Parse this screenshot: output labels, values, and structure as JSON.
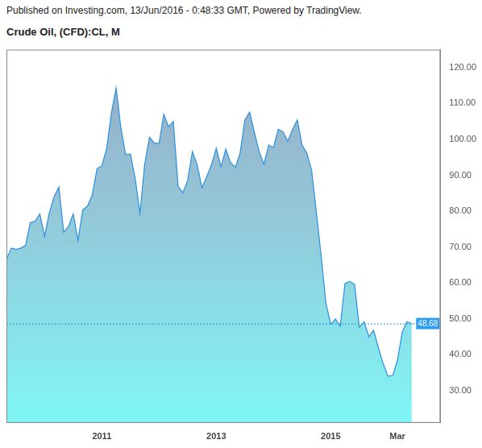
{
  "chart_data": {
    "type": "area",
    "title": "Crude Oil, (CFD):CL, M",
    "subtitle": "Published on Investing.com, 13/Jun/2016 - 0:48:33 GMT, Powered by TradingView.",
    "categories": [
      null,
      null,
      null,
      null,
      null,
      null,
      null,
      null,
      null,
      null,
      null,
      null,
      null,
      null,
      null,
      null,
      null,
      null,
      null,
      null,
      "2011",
      null,
      null,
      null,
      null,
      null,
      null,
      null,
      null,
      null,
      null,
      null,
      null,
      null,
      null,
      null,
      null,
      null,
      null,
      null,
      null,
      null,
      null,
      null,
      "2013",
      null,
      null,
      null,
      null,
      null,
      null,
      null,
      null,
      null,
      null,
      null,
      null,
      null,
      null,
      null,
      null,
      null,
      null,
      null,
      null,
      null,
      null,
      null,
      "2015",
      null,
      null,
      null,
      null,
      null,
      null,
      null,
      null,
      null,
      null,
      null,
      null,
      null,
      "Mar",
      null,
      null,
      null,
      null,
      null,
      null,
      null,
      null,
      null
    ],
    "values": [
      66.4,
      69.7,
      69.3,
      69.7,
      70.4,
      76.8,
      77.2,
      79.2,
      73.0,
      79.6,
      84.0,
      86.7,
      74.1,
      75.7,
      79.2,
      71.9,
      80.3,
      81.4,
      84.5,
      91.8,
      92.6,
      97.3,
      107.2,
      114.3,
      103.2,
      95.7,
      95.9,
      89.1,
      79.4,
      93.1,
      100.6,
      99.0,
      98.8,
      107.0,
      103.5,
      105.0,
      86.9,
      85.1,
      88.5,
      96.6,
      92.9,
      86.5,
      89.6,
      92.9,
      97.5,
      92.4,
      97.3,
      93.5,
      92.2,
      96.2,
      105.4,
      107.6,
      101.9,
      96.6,
      93.1,
      98.4,
      97.7,
      102.8,
      102.1,
      99.5,
      102.8,
      105.4,
      98.4,
      96.2,
      91.3,
      79.6,
      67.5,
      54.3,
      48.5,
      49.9,
      47.9,
      59.8,
      60.4,
      59.6,
      47.6,
      49.2,
      45.0,
      46.8,
      41.9,
      37.5,
      34.0,
      34.2,
      38.4,
      46.3,
      49.2,
      48.68,
      null,
      null,
      null,
      null,
      null,
      null
    ],
    "color": "#2a8fe0",
    "ylim": [
      21,
      125
    ],
    "yticks": [
      {
        "value": 30,
        "label": "30.00"
      },
      {
        "value": 40,
        "label": "40.00"
      },
      {
        "value": 50,
        "label": "50.00"
      },
      {
        "value": 60,
        "label": "60.00"
      },
      {
        "value": 70,
        "label": "70.00"
      },
      {
        "value": 80,
        "label": "80.00"
      },
      {
        "value": 90,
        "label": "90.00"
      },
      {
        "value": 100,
        "label": "100.00"
      },
      {
        "value": 110,
        "label": "110.00"
      },
      {
        "value": 120,
        "label": "120.00"
      }
    ],
    "grid": false,
    "annotations": [
      {
        "text": "Investing.com"
      },
      {
        "text": "48.68",
        "y": 48.68
      }
    ]
  }
}
